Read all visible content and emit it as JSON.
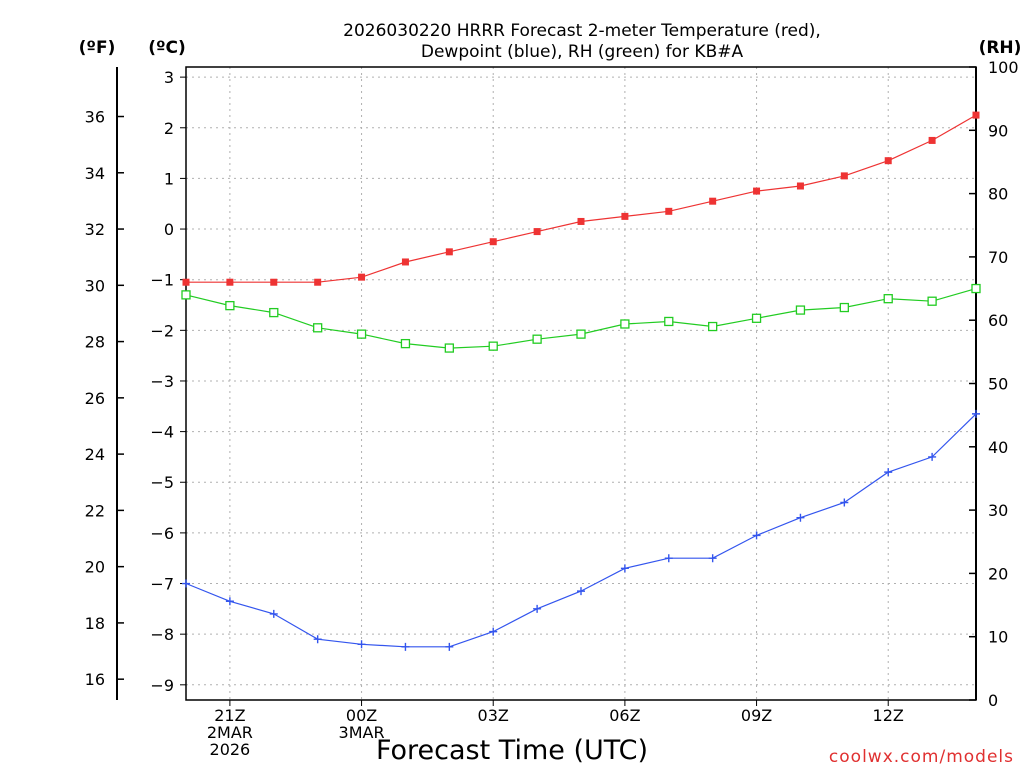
{
  "chart_data": {
    "type": "line",
    "title_lines": [
      "2026030220 HRRR Forecast 2-meter Temperature (red),",
      "Dewpoint (blue), RH (green) for KB#A"
    ],
    "xlabel": "Forecast Time (UTC)",
    "x_hours": [
      20,
      21,
      22,
      23,
      24,
      25,
      26,
      27,
      28,
      29,
      30,
      31,
      32,
      33,
      34,
      35,
      36,
      37,
      38
    ],
    "x_ticks": [
      {
        "hour": 21,
        "lines": [
          "21Z",
          "2MAR",
          "2026"
        ]
      },
      {
        "hour": 24,
        "lines": [
          "00Z",
          "3MAR"
        ]
      },
      {
        "hour": 27,
        "lines": [
          "03Z"
        ]
      },
      {
        "hour": 30,
        "lines": [
          "06Z"
        ]
      },
      {
        "hour": 33,
        "lines": [
          "09Z"
        ]
      },
      {
        "hour": 36,
        "lines": [
          "12Z"
        ]
      }
    ],
    "left_axis_c": {
      "label": "(ºC)",
      "range": [
        -9.3,
        3.2
      ],
      "ticks": [
        -9,
        -8,
        -7,
        -6,
        -5,
        -4,
        -3,
        -2,
        -1,
        0,
        1,
        2,
        3
      ]
    },
    "left_axis_f": {
      "label": "(ºF)",
      "ticks": [
        16,
        18,
        20,
        22,
        24,
        26,
        28,
        30,
        32,
        34,
        36
      ]
    },
    "right_axis_rh": {
      "label": "(RH)",
      "range": [
        0,
        100
      ],
      "ticks": [
        0,
        10,
        20,
        30,
        40,
        50,
        60,
        70,
        80,
        90,
        100
      ]
    },
    "series": [
      {
        "name": "Temperature",
        "axis": "C",
        "color": "#ee3333",
        "marker": "filled-square",
        "values": [
          -1.05,
          -1.05,
          -1.05,
          -1.05,
          -0.95,
          -0.65,
          -0.45,
          -0.25,
          -0.05,
          0.15,
          0.25,
          0.35,
          0.55,
          0.75,
          0.85,
          1.05,
          1.35,
          1.75,
          2.25
        ]
      },
      {
        "name": "Dewpoint",
        "axis": "C",
        "color": "#3355ee",
        "marker": "plus",
        "values": [
          -7.0,
          -7.35,
          -7.6,
          -8.1,
          -8.2,
          -8.25,
          -8.25,
          -7.95,
          -7.5,
          -7.15,
          -6.7,
          -6.5,
          -6.5,
          -6.05,
          -5.7,
          -5.4,
          -4.8,
          -4.5,
          -3.65
        ]
      },
      {
        "name": "RH",
        "axis": "RH",
        "color": "#22cc22",
        "marker": "open-square",
        "values": [
          64.0,
          62.3,
          61.2,
          58.8,
          57.8,
          56.3,
          55.6,
          55.9,
          57.0,
          57.8,
          59.4,
          59.8,
          59.0,
          60.3,
          61.6,
          62.0,
          63.4,
          63.0,
          65.0
        ]
      }
    ]
  },
  "watermark": "coolwx.com/models"
}
